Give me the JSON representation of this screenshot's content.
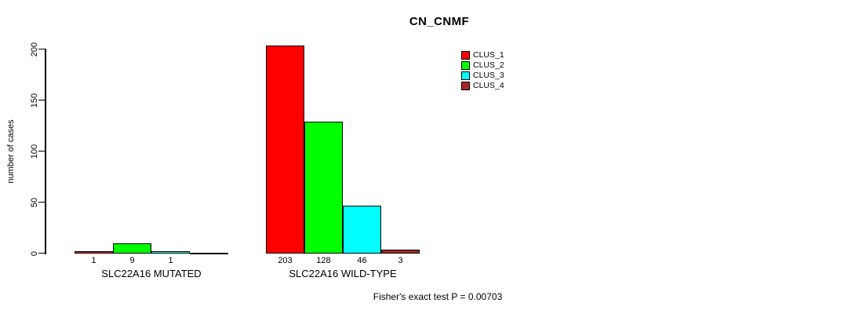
{
  "title": "CN_CNMF",
  "ylabel": "number of cases",
  "footer": "Fisher's exact test P = 0.00703",
  "colors": {
    "background": "#FFFFFF",
    "axis": "#000000",
    "text": "#000000"
  },
  "chart_data": {
    "type": "bar",
    "title": "CN_CNMF",
    "xlabel": "",
    "ylabel": "number of cases",
    "ylim": [
      0,
      200
    ],
    "yticks": [
      0,
      50,
      100,
      150,
      200
    ],
    "grid": false,
    "legend_position": "top-right",
    "categories": [
      "SLC22A16 MUTATED",
      "SLC22A16 WILD-TYPE"
    ],
    "series": [
      {
        "name": "CLUS_1",
        "color": "#FF0000",
        "values": [
          1,
          203
        ]
      },
      {
        "name": "CLUS_2",
        "color": "#00FF00",
        "values": [
          9,
          128
        ]
      },
      {
        "name": "CLUS_3",
        "color": "#00FFFF",
        "values": [
          1,
          46
        ]
      },
      {
        "name": "CLUS_4",
        "color": "#A52A2A",
        "values": [
          0,
          3
        ]
      }
    ],
    "bar_value_labels": {
      "SLC22A16 MUTATED": [
        "1",
        "9",
        "1",
        ""
      ],
      "SLC22A16 WILD-TYPE": [
        "203",
        "128",
        "46",
        "3"
      ]
    },
    "annotation": "Fisher's exact test P = 0.00703"
  }
}
